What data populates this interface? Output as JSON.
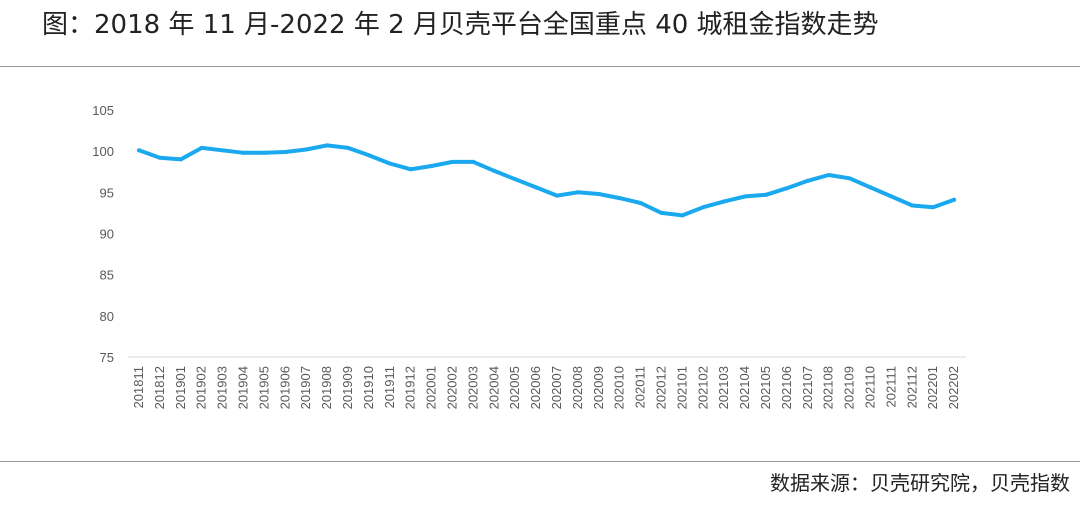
{
  "title": "图：2018 年 11 月-2022 年 2 月贝壳平台全国重点 40 城租金指数走势",
  "source": "数据来源：贝壳研究院，贝壳指数",
  "colors": {
    "series": "#1aa8ef",
    "grid_axis": "#d9d9d9",
    "tick_text": "#595959",
    "rule": "#9a9a9a"
  },
  "chart_data": {
    "type": "line",
    "title": "",
    "xlabel": "",
    "ylabel": "",
    "ylim": [
      75,
      105
    ],
    "yticks": [
      105,
      100,
      95,
      90,
      85,
      80,
      75
    ],
    "grid": false,
    "legend": "none",
    "categories": [
      "201811",
      "201812",
      "201901",
      "201902",
      "201903",
      "201904",
      "201905",
      "201906",
      "201907",
      "201908",
      "201909",
      "201910",
      "201911",
      "201912",
      "202001",
      "202002",
      "202003",
      "202004",
      "202005",
      "202006",
      "202007",
      "202008",
      "202009",
      "202010",
      "202011",
      "202012",
      "202101",
      "202102",
      "202103",
      "202104",
      "202105",
      "202106",
      "202107",
      "202108",
      "202109",
      "202110",
      "202111",
      "202112",
      "202201",
      "202202"
    ],
    "series": [
      {
        "name": "",
        "values": [
          100.1,
          99.2,
          99.0,
          100.4,
          100.1,
          99.8,
          99.8,
          99.9,
          100.2,
          100.7,
          100.4,
          99.5,
          98.5,
          97.8,
          98.2,
          98.7,
          98.7,
          97.6,
          96.6,
          95.6,
          94.6,
          95.0,
          94.8,
          94.3,
          93.7,
          92.5,
          92.2,
          93.2,
          93.9,
          94.5,
          94.7,
          95.5,
          96.4,
          97.1,
          96.7,
          95.6,
          94.5,
          93.4,
          93.2,
          94.1
        ]
      }
    ]
  }
}
